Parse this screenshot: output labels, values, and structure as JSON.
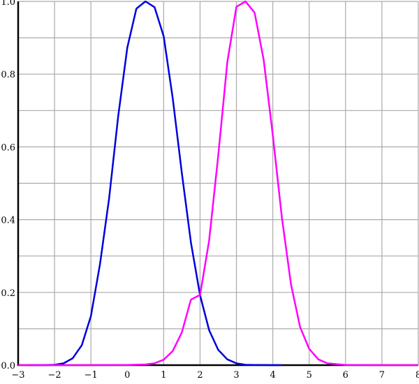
{
  "chart_data": {
    "type": "line",
    "title": "",
    "xlabel": "",
    "ylabel": "",
    "xlim": [
      -3,
      8
    ],
    "ylim": [
      0,
      1
    ],
    "grid": true,
    "x_ticks": [
      -3,
      -2,
      -1,
      0,
      1,
      2,
      3,
      4,
      5,
      6,
      7,
      8
    ],
    "x_tick_labels": [
      "−3",
      "−2",
      "−1",
      "0",
      "1",
      "2",
      "3",
      "4",
      "5",
      "6",
      "7",
      "8"
    ],
    "y_ticks": [
      0,
      0.2,
      0.4,
      0.6,
      0.8,
      1.0
    ],
    "y_tick_labels": [
      "0.0",
      "0.2",
      "0.4",
      "0.6",
      "0.8",
      "1.0"
    ],
    "y_minor_grid": [
      0.1,
      0.3,
      0.5,
      0.7,
      0.9
    ],
    "series": [
      {
        "color": "#0000dd",
        "x": [
          -2.75,
          -2.5,
          -2.25,
          -2,
          -1.75,
          -1.5,
          -1.25,
          -1,
          -0.75,
          -0.5,
          -0.25,
          0,
          0.25,
          0.5,
          0.75,
          1,
          1.25,
          1.5,
          1.75,
          2,
          2.25,
          2.5,
          2.75,
          3,
          3.25,
          3.5,
          3.75,
          4,
          4.25
        ],
        "y": [
          0.0,
          0.0,
          0.0002,
          0.001,
          0.005,
          0.019,
          0.055,
          0.135,
          0.278,
          0.458,
          0.685,
          0.873,
          0.98,
          1.0,
          0.984,
          0.904,
          0.733,
          0.528,
          0.337,
          0.192,
          0.096,
          0.042,
          0.016,
          0.005,
          0.001,
          0.0003,
          0.0001,
          0.0,
          0.0
        ]
      },
      {
        "color": "#ff00ff",
        "x": [
          -3,
          -1,
          0,
          0.5,
          0.75,
          1,
          1.25,
          1.5,
          1.75,
          2,
          2.25,
          2.5,
          2.75,
          3,
          3.25,
          3.5,
          3.75,
          4,
          4.25,
          4.5,
          4.75,
          5,
          5.25,
          5.5,
          6,
          7,
          8
        ],
        "y": [
          0.0,
          0.0,
          0.0003,
          0.002,
          0.005,
          0.015,
          0.039,
          0.09,
          0.18,
          0.193,
          0.343,
          0.576,
          0.833,
          0.985,
          1.0,
          0.969,
          0.839,
          0.633,
          0.405,
          0.222,
          0.105,
          0.045,
          0.016,
          0.005,
          0.0004,
          0.0,
          0.0
        ]
      }
    ]
  }
}
